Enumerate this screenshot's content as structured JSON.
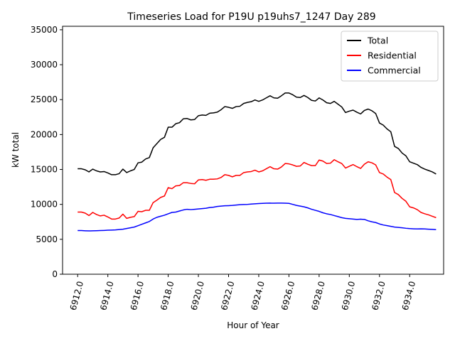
{
  "chart_data": {
    "type": "line",
    "title": "Timeseries Load for P19U p19uhs7_1247  Day 289",
    "xlabel": "Hour of Year",
    "ylabel": "kW total",
    "xlim": [
      6911.0,
      6936.25
    ],
    "ylim": [
      0,
      35500
    ],
    "xticks": [
      6912,
      6914,
      6916,
      6918,
      6920,
      6922,
      6924,
      6926,
      6928,
      6930,
      6932,
      6934
    ],
    "xtick_labels": [
      "6912.0",
      "6914.0",
      "6916.0",
      "6918.0",
      "6920.0",
      "6922.0",
      "6924.0",
      "6926.0",
      "6928.0",
      "6930.0",
      "6932.0",
      "6934.0"
    ],
    "yticks": [
      0,
      5000,
      10000,
      15000,
      20000,
      25000,
      30000,
      35000
    ],
    "ytick_labels": [
      "0",
      "5000",
      "10000",
      "15000",
      "20000",
      "25000",
      "30000",
      "35000"
    ],
    "legend_position": "top-right",
    "x_start": 6912.0,
    "x_step": 0.25,
    "series": [
      {
        "name": "Total",
        "color": "#000000",
        "values": [
          15100,
          15100,
          14950,
          14650,
          15050,
          14800,
          14650,
          14700,
          14500,
          14250,
          14250,
          14400,
          15050,
          14550,
          14800,
          15000,
          15950,
          16050,
          16500,
          16700,
          18100,
          18700,
          19300,
          19600,
          21050,
          21050,
          21550,
          21700,
          22250,
          22300,
          22100,
          22150,
          22700,
          22800,
          22750,
          23050,
          23100,
          23200,
          23550,
          24000,
          23900,
          23750,
          24000,
          24050,
          24450,
          24600,
          24700,
          24950,
          24750,
          24950,
          25250,
          25550,
          25250,
          25200,
          25550,
          25950,
          25950,
          25700,
          25350,
          25300,
          25600,
          25300,
          24900,
          24800,
          25250,
          24950,
          24550,
          24450,
          24750,
          24350,
          23950,
          23150,
          23350,
          23500,
          23200,
          22950,
          23450,
          23650,
          23400,
          23000,
          21650,
          21350,
          20800,
          20400,
          18300,
          18000,
          17350,
          16950,
          16100,
          15900,
          15700,
          15300,
          15050,
          14850,
          14650,
          14350
        ]
      },
      {
        "name": "Residential",
        "color": "#ff0000",
        "values": [
          8900,
          8900,
          8750,
          8400,
          8850,
          8550,
          8350,
          8450,
          8200,
          7900,
          7900,
          8050,
          8600,
          8000,
          8150,
          8250,
          9000,
          8950,
          9150,
          9150,
          10250,
          10600,
          11000,
          11200,
          12400,
          12250,
          12650,
          12700,
          13100,
          13100,
          13000,
          12950,
          13500,
          13550,
          13450,
          13600,
          13600,
          13650,
          13850,
          14250,
          14150,
          13950,
          14150,
          14150,
          14550,
          14650,
          14700,
          14900,
          14650,
          14800,
          15100,
          15400,
          15100,
          15050,
          15350,
          15850,
          15800,
          15650,
          15450,
          15500,
          16000,
          15750,
          15550,
          15550,
          16350,
          16200,
          15850,
          15900,
          16400,
          16100,
          15850,
          15200,
          15450,
          15700,
          15400,
          15150,
          15750,
          16100,
          15950,
          15650,
          14550,
          14350,
          13900,
          13550,
          11700,
          11400,
          10850,
          10450,
          9650,
          9500,
          9250,
          8850,
          8650,
          8500,
          8300,
          8100
        ]
      },
      {
        "name": "Commercial",
        "color": "#0000ff",
        "values": [
          6250,
          6250,
          6220,
          6200,
          6220,
          6230,
          6250,
          6270,
          6300,
          6320,
          6350,
          6400,
          6450,
          6550,
          6650,
          6750,
          6950,
          7150,
          7350,
          7550,
          7900,
          8150,
          8300,
          8450,
          8650,
          8850,
          8900,
          9050,
          9200,
          9300,
          9250,
          9300,
          9350,
          9400,
          9450,
          9550,
          9600,
          9700,
          9750,
          9800,
          9820,
          9850,
          9900,
          9950,
          9980,
          10000,
          10050,
          10080,
          10120,
          10150,
          10170,
          10180,
          10170,
          10180,
          10190,
          10170,
          10150,
          10000,
          9850,
          9750,
          9650,
          9500,
          9300,
          9150,
          9000,
          8800,
          8650,
          8550,
          8400,
          8250,
          8100,
          8000,
          7950,
          7900,
          7850,
          7880,
          7850,
          7650,
          7500,
          7400,
          7200,
          7050,
          6950,
          6850,
          6750,
          6700,
          6650,
          6580,
          6530,
          6500,
          6480,
          6500,
          6480,
          6450,
          6420,
          6380
        ]
      }
    ]
  }
}
